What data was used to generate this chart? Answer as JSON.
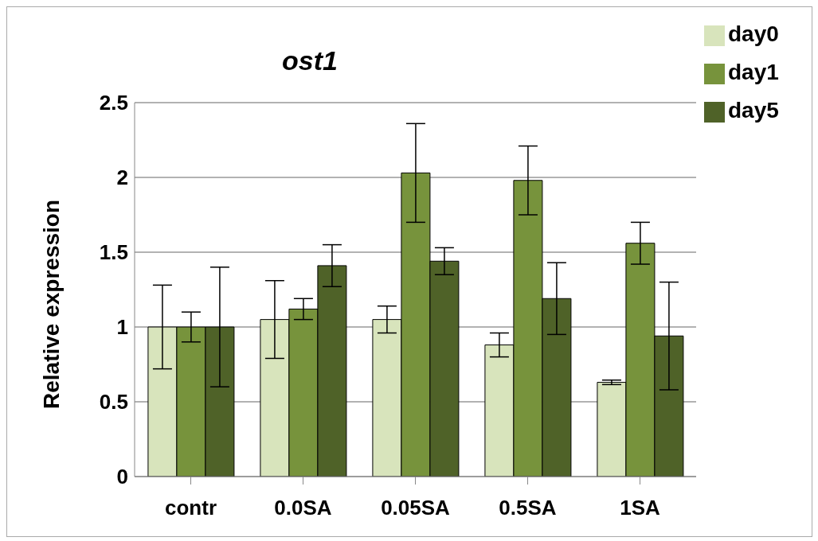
{
  "chart_data": {
    "type": "bar",
    "title": "ost1",
    "ylabel": "Relative expression",
    "categories": [
      "contr",
      "0.0SA",
      "0.05SA",
      "0.5SA",
      "1SA"
    ],
    "series": [
      {
        "name": "day0",
        "color": "#d8e4bc",
        "values": [
          1,
          1.05,
          1.05,
          0.88,
          0.63
        ],
        "errors": [
          0.28,
          0.26,
          0.09,
          0.08,
          0.015
        ]
      },
      {
        "name": "day1",
        "color": "#77933c",
        "values": [
          1,
          1.12,
          2.03,
          1.98,
          1.56
        ],
        "errors": [
          0.1,
          0.07,
          0.33,
          0.23,
          0.14
        ]
      },
      {
        "name": "day5",
        "color": "#4f6228",
        "values": [
          1,
          1.41,
          1.44,
          1.19,
          0.94
        ],
        "errors": [
          0.4,
          0.14,
          0.09,
          0.24,
          0.36
        ]
      }
    ],
    "ylim": [
      0,
      2.5
    ],
    "yticks": [
      0,
      0.5,
      1,
      1.5,
      2,
      2.5
    ],
    "grid": "y",
    "legend": "top right"
  }
}
